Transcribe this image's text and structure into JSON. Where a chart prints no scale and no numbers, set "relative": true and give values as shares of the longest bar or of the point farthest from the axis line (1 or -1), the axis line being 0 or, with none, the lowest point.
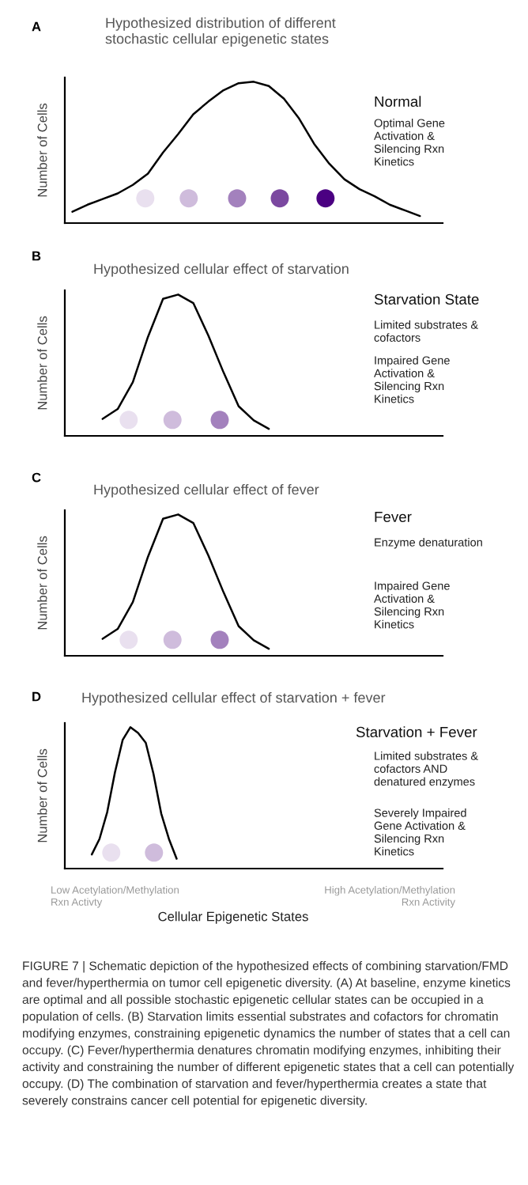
{
  "chart_data": [
    {
      "type": "line",
      "title": "Hypothesized distribution of different\nstochastic cellular epigenetic states",
      "ylabel": "Number of Cells",
      "relative": true,
      "categories": [
        null,
        null,
        null,
        null,
        null,
        null,
        null,
        null,
        null,
        null,
        null,
        null,
        null,
        null,
        null,
        null,
        null,
        null,
        null,
        null,
        null,
        null,
        null,
        null
      ],
      "series": [
        {
          "color": "#000000",
          "values": [
            0.08,
            0.13,
            0.17,
            0.21,
            0.27,
            0.35,
            0.5,
            0.63,
            0.77,
            0.86,
            0.94,
            0.99,
            1.0,
            0.97,
            0.88,
            0.74,
            0.56,
            0.42,
            0.31,
            0.24,
            0.19,
            0.13,
            0.09,
            0.05
          ]
        }
      ],
      "annotations": [
        "A",
        "Normal",
        "Optimal Gene\nActivation &\nSilencing Rxn\nKinetics"
      ]
    },
    {
      "type": "line",
      "title": "Hypothesized cellular effect of starvation",
      "ylabel": "Number of Cells",
      "relative": true,
      "categories": [
        null,
        null,
        null,
        null,
        null,
        null,
        null,
        null,
        null,
        null,
        null,
        null
      ],
      "series": [
        {
          "color": "#000000",
          "values": [
            0.12,
            0.19,
            0.38,
            0.7,
            0.97,
            1.0,
            0.94,
            0.71,
            0.45,
            0.21,
            0.11,
            0.05
          ]
        }
      ],
      "annotations": [
        "B",
        "Starvation State",
        "Limited substrates &\ncofactors",
        "Impaired Gene\nActivation &\nSilencing Rxn\nKinetics"
      ]
    },
    {
      "type": "line",
      "title": "Hypothesized cellular effect of fever",
      "ylabel": "Number of Cells",
      "relative": true,
      "categories": [
        null,
        null,
        null,
        null,
        null,
        null,
        null,
        null,
        null,
        null,
        null,
        null
      ],
      "series": [
        {
          "color": "#000000",
          "values": [
            0.12,
            0.19,
            0.38,
            0.7,
            0.97,
            1.0,
            0.94,
            0.71,
            0.45,
            0.21,
            0.11,
            0.05
          ]
        }
      ],
      "annotations": [
        "C",
        "Fever",
        "Enzyme denaturation",
        "Impaired Gene\nActivation &\nSilencing Rxn\nKinetics"
      ]
    },
    {
      "type": "line",
      "title": "Hypothesized cellular effect of starvation + fever",
      "ylabel": "Number of Cells",
      "xlabel": "Cellular Epigenetic States",
      "relative": true,
      "categories": [
        null,
        null,
        null,
        null,
        null,
        null,
        null,
        null,
        null,
        null,
        null,
        null
      ],
      "series": [
        {
          "color": "#000000",
          "values": [
            0.1,
            0.21,
            0.4,
            0.68,
            0.91,
            1.0,
            0.96,
            0.89,
            0.67,
            0.39,
            0.21,
            0.07
          ]
        }
      ],
      "annotations": [
        "D",
        "Starvation + Fever",
        "Limited substrates &\ncofactors AND\ndenatured enzymes",
        "Severely Impaired\nGene Activation &\nSilencing Rxn\nKinetics",
        "Low Acetylation/Methylation\nRxn Activty",
        "High Acetylation/Methylation\nRxn Activity",
        "FIGURE 7 | Schematic depiction of the hypothesized effects of combining starvation/FMD and fever/hyperthermia on tumor cell epigenetic diversity. (A) At baseline, enzyme kinetics are optimal and all possible stochastic epigenetic cellular states can be occupied in a population of cells. (B) Starvation limits essential substrates and cofactors for chromatin modifying enzymes, constraining epigenetic dynamics the number of states that a cell can occupy. (C) Fever/hyperthermia denatures chromatin modifying enzymes, inhibiting their activity and constraining the number of different epigenetic states that a cell can potentially occupy. (D) The combination of starvation and fever/hyperthermia creates a state that severely constrains cancer cell potential for epigenetic diversity."
      ]
    }
  ]
}
